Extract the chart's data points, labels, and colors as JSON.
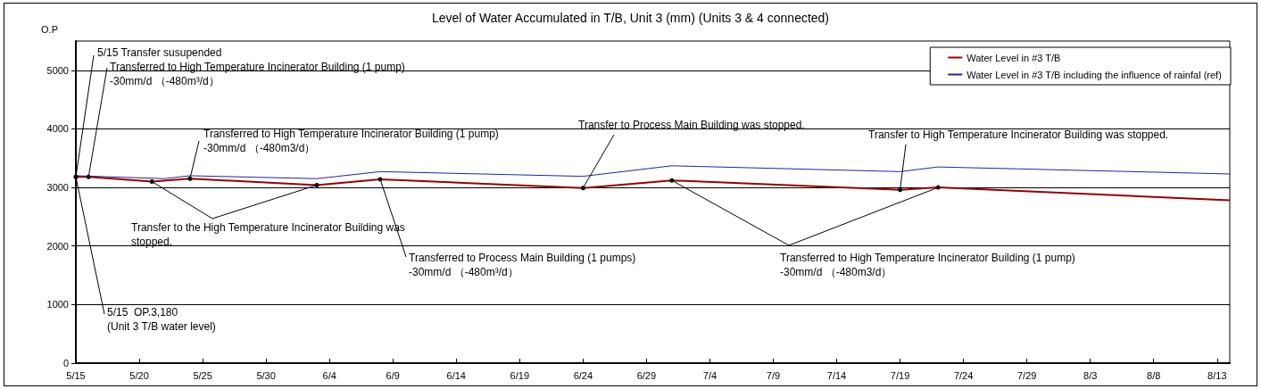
{
  "chart_data": {
    "type": "line",
    "title": "Level of Water Accumulated in T/B, Unit 3 (mm) (Units 3 & 4 connected)",
    "ylabel": "O.P",
    "xlim": [
      "--05-15",
      "--08-14"
    ],
    "xticks": [
      {
        "value": "--05-15",
        "label": "5/15"
      },
      {
        "value": "--05-20",
        "label": "5/20"
      },
      {
        "value": "--05-25",
        "label": "5/25"
      },
      {
        "value": "--05-30",
        "label": "5/30"
      },
      {
        "value": "--06-04",
        "label": "6/4"
      },
      {
        "value": "--06-09",
        "label": "6/9"
      },
      {
        "value": "--06-14",
        "label": "6/14"
      },
      {
        "value": "--06-19",
        "label": "6/19"
      },
      {
        "value": "--06-24",
        "label": "6/24"
      },
      {
        "value": "--06-29",
        "label": "6/29"
      },
      {
        "value": "--07-04",
        "label": "7/4"
      },
      {
        "value": "--07-09",
        "label": "7/9"
      },
      {
        "value": "--07-14",
        "label": "7/14"
      },
      {
        "value": "--07-19",
        "label": "7/19"
      },
      {
        "value": "--07-24",
        "label": "7/24"
      },
      {
        "value": "--07-29",
        "label": "7/29"
      },
      {
        "value": "--08-03",
        "label": "8/3"
      },
      {
        "value": "--08-08",
        "label": "8/8"
      },
      {
        "value": "--08-13",
        "label": "8/13"
      }
    ],
    "ylim": [
      0,
      5500
    ],
    "yticks": [
      0,
      1000,
      2000,
      3000,
      4000,
      5000
    ],
    "series": [
      {
        "name": "Water Level in #3 T/B",
        "color": "#990000",
        "x": [
          "--05-15",
          "--05-16",
          "--05-21",
          "--05-24",
          "--06-03",
          "--06-08",
          "--06-24",
          "--07-01",
          "--07-19",
          "--07-22",
          "--08-14"
        ],
        "values": [
          3180,
          3180,
          3100,
          3150,
          3040,
          3140,
          2990,
          3120,
          2960,
          3000,
          2780
        ]
      },
      {
        "name": "Water Level in #3 T/B including the influence of rainfal (ref)",
        "color": "#2222aa",
        "x": [
          "--05-15",
          "--05-22",
          "--05-24",
          "--06-03",
          "--06-08",
          "--06-24",
          "--07-01",
          "--07-19",
          "--07-22",
          "--08-14"
        ],
        "values": [
          3200,
          3150,
          3200,
          3150,
          3270,
          3190,
          3370,
          3270,
          3350,
          3230
        ]
      }
    ],
    "annotations": [
      {
        "text": "5/15 Transfer susupended",
        "x": "--05-15",
        "y": 3180
      },
      {
        "text": "Transferred to High Temperature Incinerator Building (1 pump)\n-30mm/d （-480m³/d）",
        "x": "--05-16",
        "y": 3180
      },
      {
        "text": "Transferred to High Temperature Incinerator Building (1 pump)\n-30mm/d （-480m3/d）",
        "x": "--05-24",
        "y": 3150
      },
      {
        "text": "Transfer to the High Temperature Incinerator Building was\nstopped.",
        "x": "--05-21",
        "y": 3100
      },
      {
        "text": "Transferred to Process Main Building (1 pumps)\n-30mm/d （-480m³/d）",
        "x": "--06-08",
        "y": 3140
      },
      {
        "text": "Transfer to Process Main Building was stopped.",
        "x": "--06-24",
        "y": 2990
      },
      {
        "text": "Transfer to High Temperature Incinerator Building was stopped.",
        "x": "--07-19",
        "y": 2960
      },
      {
        "text": "Transferred to High Temperature Incinerator Building (1 pump)\n-30mm/d （-480m3/d）",
        "x": "--07-01",
        "y": 3120
      },
      {
        "text": "5/15  OP.3,180\n(Unit 3 T/B water level)",
        "x": "--05-15",
        "y": 3180
      }
    ],
    "grid": "y",
    "legend": "top right",
    "marker": "none",
    "line_style": "solid"
  }
}
